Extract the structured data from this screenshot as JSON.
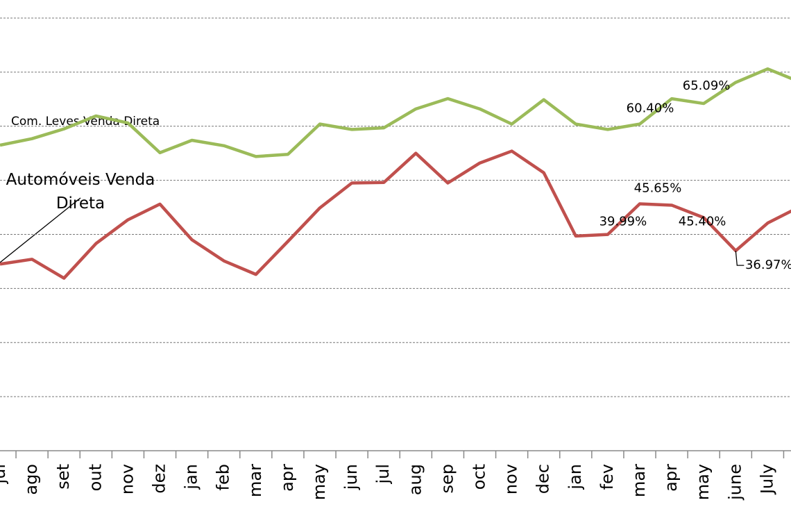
{
  "chart_data": {
    "type": "line",
    "categories": [
      "jul",
      "ago",
      "set",
      "out",
      "nov",
      "dez",
      "jan",
      "feb",
      "mar",
      "apr",
      "may",
      "jun",
      "jul",
      "aug",
      "sep",
      "oct",
      "nov",
      "dec",
      "jan",
      "fev",
      "mar",
      "apr",
      "may",
      "june",
      "July",
      null
    ],
    "series": [
      {
        "name": "Com. Leves Venda Direta",
        "color": "#9bbb59",
        "values": [
          56.5,
          57.7,
          59.5,
          61.9,
          60.6,
          55.1,
          57.4,
          56.4,
          54.4,
          54.8,
          60.4,
          59.4,
          59.7,
          63.2,
          65.1,
          63.2,
          60.4,
          64.9,
          60.4,
          59.4,
          60.4,
          65.09,
          64.2,
          68.1,
          70.6,
          68.2
        ],
        "value_labels": [
          null,
          null,
          null,
          null,
          null,
          null,
          null,
          null,
          null,
          null,
          null,
          null,
          null,
          null,
          null,
          null,
          null,
          null,
          null,
          null,
          "60.40%",
          "65.09%",
          null,
          null,
          null,
          null
        ]
      },
      {
        "name": "Automóveis Venda Direta",
        "color": "#c0504d",
        "values": [
          34.5,
          35.4,
          31.9,
          38.3,
          42.7,
          45.6,
          39.0,
          35.1,
          32.6,
          38.7,
          44.9,
          49.5,
          49.6,
          55.0,
          49.5,
          53.2,
          55.4,
          51.4,
          39.7,
          39.99,
          45.65,
          45.4,
          43.1,
          36.97,
          42.1,
          45.1
        ],
        "value_labels": [
          null,
          null,
          null,
          null,
          null,
          null,
          null,
          null,
          null,
          null,
          null,
          null,
          null,
          null,
          null,
          null,
          null,
          null,
          null,
          "39.99%",
          "45.65%",
          "45.40%",
          null,
          "36.97%",
          null,
          null
        ]
      }
    ],
    "ylim": [
      0,
      80
    ],
    "yticks": [
      0,
      10,
      20,
      30,
      40,
      50,
      60,
      70,
      80
    ],
    "grid": true
  }
}
